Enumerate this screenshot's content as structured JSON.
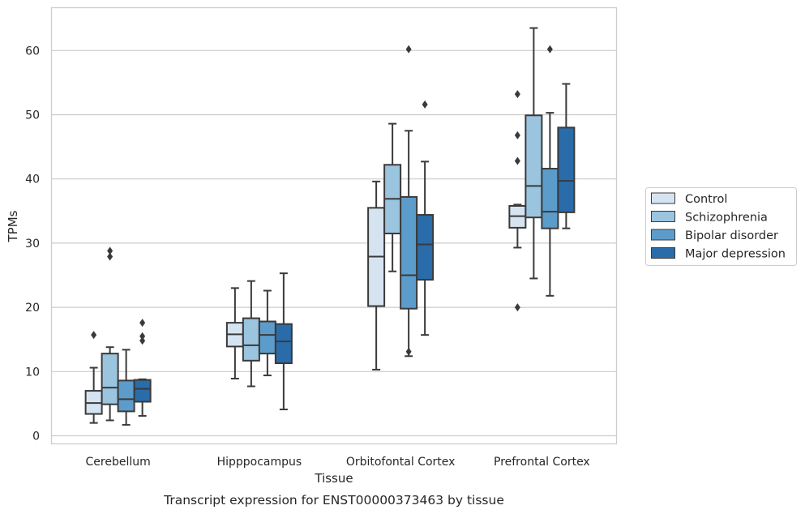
{
  "chart_data": {
    "type": "box",
    "title": "",
    "caption": "Transcript expression for ENST00000373463 by tissue",
    "xlabel": "Tissue",
    "ylabel": "TPMs",
    "ylim": [
      -1.3,
      66.5
    ],
    "yticks": [
      0,
      10,
      20,
      30,
      40,
      50,
      60
    ],
    "grid": "horizontal",
    "legend_position": "right",
    "categories": [
      "Cerebellum",
      "Hipppocampus",
      "Orbitofontal Cortex",
      "Prefrontal Cortex"
    ],
    "series": [
      {
        "name": "Control",
        "color": "#d6e4f2",
        "boxes": [
          {
            "whislo": 2.0,
            "q1": 3.4,
            "med": 5.1,
            "q3": 7.0,
            "whishi": 10.6,
            "fliers": [
              15.7
            ]
          },
          {
            "whislo": 8.9,
            "q1": 13.9,
            "med": 15.8,
            "q3": 17.6,
            "whishi": 23.0,
            "fliers": []
          },
          {
            "whislo": 10.3,
            "q1": 20.2,
            "med": 27.9,
            "q3": 35.5,
            "whishi": 39.6,
            "fliers": []
          },
          {
            "whislo": 29.3,
            "q1": 32.4,
            "med": 34.2,
            "q3": 35.8,
            "whishi": 36.0,
            "fliers": [
              53.2,
              46.8,
              42.8,
              20.0
            ]
          }
        ]
      },
      {
        "name": "Schizophrenia",
        "color": "#9bc4df",
        "boxes": [
          {
            "whislo": 2.4,
            "q1": 4.9,
            "med": 7.5,
            "q3": 12.8,
            "whishi": 13.8,
            "fliers": [
              28.8,
              27.9
            ]
          },
          {
            "whislo": 7.7,
            "q1": 11.7,
            "med": 14.1,
            "q3": 18.3,
            "whishi": 24.1,
            "fliers": []
          },
          {
            "whislo": 25.6,
            "q1": 31.5,
            "med": 36.9,
            "q3": 42.2,
            "whishi": 48.6,
            "fliers": []
          },
          {
            "whislo": 24.5,
            "q1": 34.0,
            "med": 38.9,
            "q3": 49.9,
            "whishi": 63.5,
            "fliers": []
          }
        ]
      },
      {
        "name": "Bipolar disorder",
        "color": "#5c9ccb",
        "boxes": [
          {
            "whislo": 1.7,
            "q1": 3.8,
            "med": 5.7,
            "q3": 8.6,
            "whishi": 13.4,
            "fliers": []
          },
          {
            "whislo": 9.4,
            "q1": 12.8,
            "med": 15.7,
            "q3": 17.8,
            "whishi": 22.6,
            "fliers": []
          },
          {
            "whislo": 12.4,
            "q1": 19.8,
            "med": 25.0,
            "q3": 37.2,
            "whishi": 47.5,
            "fliers": [
              60.2,
              13.1
            ]
          },
          {
            "whislo": 21.8,
            "q1": 32.3,
            "med": 34.9,
            "q3": 41.6,
            "whishi": 50.3,
            "fliers": [
              60.2
            ]
          }
        ]
      },
      {
        "name": "Major depression",
        "color": "#2a6ca9",
        "boxes": [
          {
            "whislo": 3.1,
            "q1": 5.3,
            "med": 7.3,
            "q3": 8.7,
            "whishi": 8.8,
            "fliers": [
              17.6,
              15.5,
              14.8
            ]
          },
          {
            "whislo": 4.1,
            "q1": 11.3,
            "med": 14.7,
            "q3": 17.4,
            "whishi": 25.3,
            "fliers": []
          },
          {
            "whislo": 15.7,
            "q1": 24.3,
            "med": 29.8,
            "q3": 34.4,
            "whishi": 42.7,
            "fliers": [
              51.6
            ]
          },
          {
            "whislo": 32.3,
            "q1": 34.8,
            "med": 39.7,
            "q3": 48.0,
            "whishi": 54.8,
            "fliers": []
          }
        ]
      }
    ]
  }
}
